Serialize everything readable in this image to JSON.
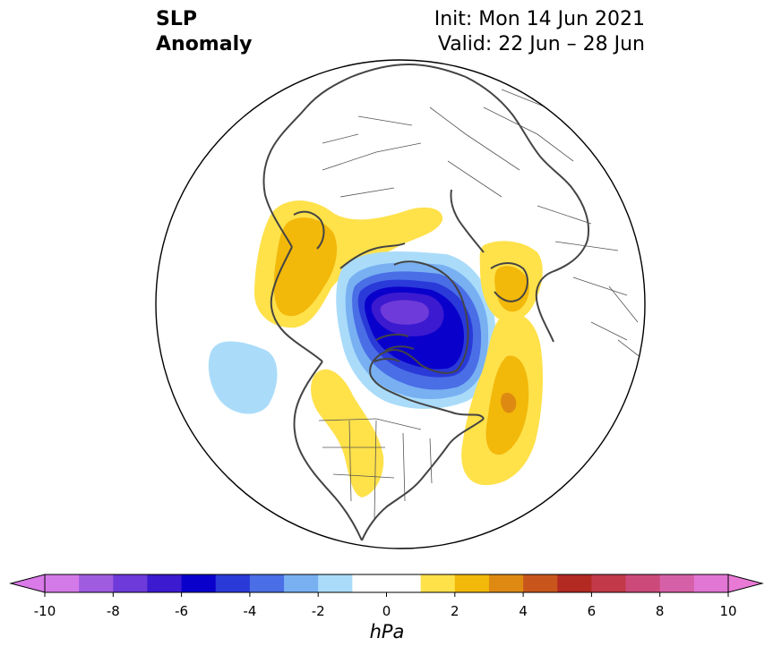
{
  "title": {
    "left_line1": "SLP",
    "left_line2": "Anomaly",
    "right_line1": "Init: Mon 14 Jun 2021",
    "right_line2": "Valid: 22 Jun – 28 Jun"
  },
  "colorbar": {
    "unit": "hPa",
    "min": -10,
    "max": 10,
    "tick_labels": [
      "-10",
      "-8",
      "-6",
      "-4",
      "-2",
      "0",
      "2",
      "4",
      "6",
      "8",
      "10"
    ],
    "ticks": [
      -10,
      -8,
      -6,
      -4,
      -2,
      0,
      2,
      4,
      6,
      8,
      10
    ],
    "under_color": "#d97ae8",
    "over_color": "#e87ad6",
    "bins": [
      {
        "from": -10,
        "to": -9,
        "color": "#d47ae8"
      },
      {
        "from": -9,
        "to": -8,
        "color": "#a05ce0"
      },
      {
        "from": -8,
        "to": -7,
        "color": "#6e3ad9"
      },
      {
        "from": -7,
        "to": -6,
        "color": "#3c1ad0"
      },
      {
        "from": -6,
        "to": -5,
        "color": "#0a00cc"
      },
      {
        "from": -5,
        "to": -4,
        "color": "#2a3ad8"
      },
      {
        "from": -4,
        "to": -3,
        "color": "#4a6ee6"
      },
      {
        "from": -3,
        "to": -2,
        "color": "#78b0f2"
      },
      {
        "from": -2,
        "to": -1,
        "color": "#aadcfa"
      },
      {
        "from": -1,
        "to": 1,
        "color": "#ffffff"
      },
      {
        "from": 1,
        "to": 2,
        "color": "#ffe14a"
      },
      {
        "from": 2,
        "to": 3,
        "color": "#f2b80a"
      },
      {
        "from": 3,
        "to": 4,
        "color": "#de8a12"
      },
      {
        "from": 4,
        "to": 5,
        "color": "#c8561c"
      },
      {
        "from": 5,
        "to": 6,
        "color": "#b22a22"
      },
      {
        "from": 6,
        "to": 7,
        "color": "#c23a4a"
      },
      {
        "from": 7,
        "to": 8,
        "color": "#cc4a7a"
      },
      {
        "from": 8,
        "to": 9,
        "color": "#d660a8"
      },
      {
        "from": 9,
        "to": 10,
        "color": "#e276d4"
      }
    ]
  },
  "map": {
    "projection": "north-polar-stereographic",
    "ocean_color": "#ffffff",
    "coastline_color": "#444444",
    "anomaly_features": [
      {
        "name": "arctic-low",
        "sign": "negative",
        "peak_hpa": -7
      },
      {
        "name": "north-pacific-low",
        "sign": "negative",
        "peak_hpa": -2
      },
      {
        "name": "north-atlantic-high",
        "sign": "positive",
        "peak_hpa": 4
      },
      {
        "name": "western-europe-high",
        "sign": "positive",
        "peak_hpa": 3
      },
      {
        "name": "east-siberia-high",
        "sign": "positive",
        "peak_hpa": 3
      },
      {
        "name": "central-north-america-high",
        "sign": "positive",
        "peak_hpa": 2
      }
    ]
  }
}
